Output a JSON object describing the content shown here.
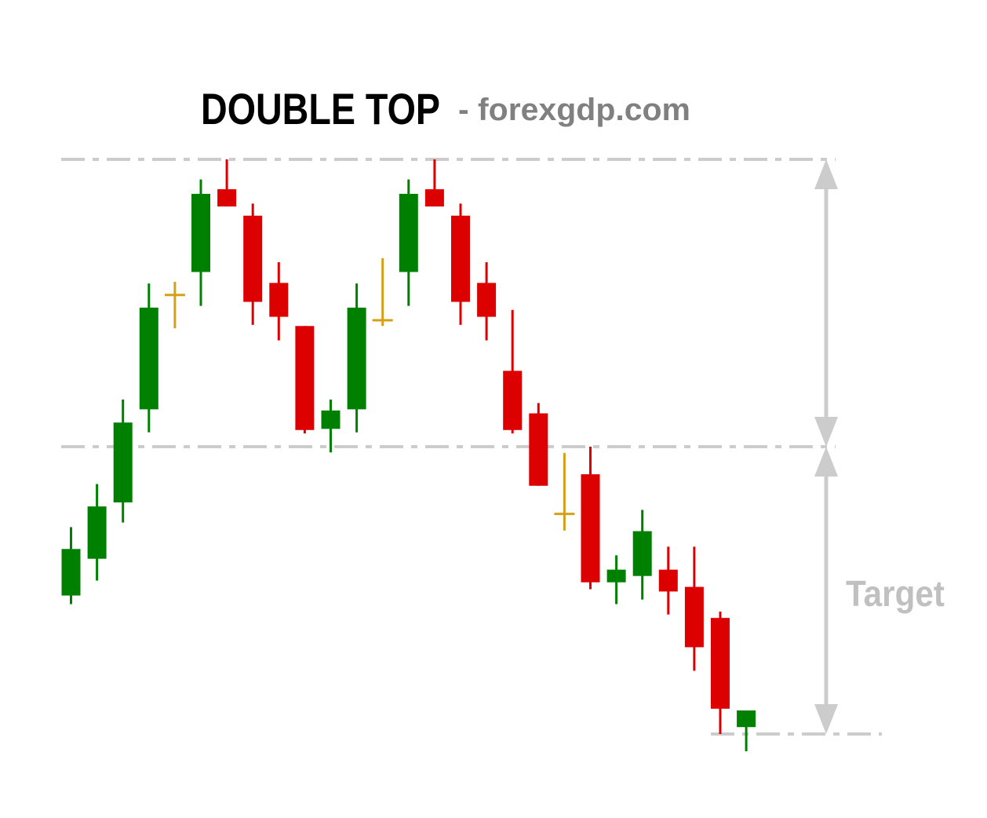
{
  "chart_data": {
    "type": "candlestick",
    "title": "DOUBLE TOP",
    "subtitle": "- forexgdp.com",
    "target_label": "Target",
    "colors": {
      "bull": "#008000",
      "bear": "#dd0000",
      "doji": "#d4a017",
      "guide": "#cccccc",
      "label": "#c0c0c0",
      "title": "#000000",
      "subtitle": "#808080"
    },
    "price_range": [
      0,
      100
    ],
    "levels": {
      "top": 100,
      "neckline": 50,
      "target": 0
    },
    "candles": [
      {
        "open": 32.2,
        "close": 24.1,
        "high": 36.0,
        "low": 22.6,
        "type": "bull"
      },
      {
        "open": 39.6,
        "close": 30.5,
        "high": 43.5,
        "low": 26.7,
        "type": "bull"
      },
      {
        "open": 54.2,
        "close": 40.3,
        "high": 58.2,
        "low": 36.8,
        "type": "bull"
      },
      {
        "open": 74.2,
        "close": 56.5,
        "high": 78.4,
        "low": 52.5,
        "type": "bull"
      },
      {
        "open": 76.4,
        "close": 76.4,
        "high": 78.7,
        "low": 70.6,
        "type": "doji"
      },
      {
        "open": 94.0,
        "close": 80.4,
        "high": 96.5,
        "low": 74.5,
        "type": "bull"
      },
      {
        "open": 94.8,
        "close": 91.8,
        "high": 100.0,
        "low": 91.8,
        "type": "bear"
      },
      {
        "open": 90.2,
        "close": 75.2,
        "high": 92.3,
        "low": 71.2,
        "type": "bear"
      },
      {
        "open": 78.5,
        "close": 72.6,
        "high": 82.1,
        "low": 68.5,
        "type": "bear"
      },
      {
        "open": 71.0,
        "close": 52.9,
        "high": 71.0,
        "low": 52.3,
        "type": "bear"
      },
      {
        "open": 56.3,
        "close": 53.1,
        "high": 58.2,
        "low": 49.0,
        "type": "bull"
      },
      {
        "open": 74.2,
        "close": 56.5,
        "high": 78.4,
        "low": 52.5,
        "type": "bull"
      },
      {
        "open": 72.0,
        "close": 72.0,
        "high": 82.8,
        "low": 71.0,
        "type": "doji"
      },
      {
        "open": 94.0,
        "close": 80.4,
        "high": 96.5,
        "low": 74.5,
        "type": "bull"
      },
      {
        "open": 94.8,
        "close": 91.8,
        "high": 100.0,
        "low": 91.8,
        "type": "bear"
      },
      {
        "open": 90.2,
        "close": 75.2,
        "high": 92.3,
        "low": 71.2,
        "type": "bear"
      },
      {
        "open": 78.5,
        "close": 72.6,
        "high": 82.1,
        "low": 68.5,
        "type": "bear"
      },
      {
        "open": 63.2,
        "close": 52.9,
        "high": 73.8,
        "low": 52.3,
        "type": "bear"
      },
      {
        "open": 55.8,
        "close": 43.2,
        "high": 57.6,
        "low": 43.2,
        "type": "bear"
      },
      {
        "open": 38.3,
        "close": 38.3,
        "high": 48.9,
        "low": 35.4,
        "type": "doji"
      },
      {
        "open": 45.2,
        "close": 26.4,
        "high": 50.0,
        "low": 25.2,
        "type": "bear"
      },
      {
        "open": 28.6,
        "close": 26.4,
        "high": 31.1,
        "low": 22.6,
        "type": "bull"
      },
      {
        "open": 35.3,
        "close": 27.5,
        "high": 39.0,
        "low": 23.4,
        "type": "bull"
      },
      {
        "open": 28.6,
        "close": 24.8,
        "high": 32.6,
        "low": 20.8,
        "type": "bear"
      },
      {
        "open": 25.6,
        "close": 15.1,
        "high": 32.6,
        "low": 11.0,
        "type": "bear"
      },
      {
        "open": 20.2,
        "close": 4.4,
        "high": 21.3,
        "low": 0.0,
        "type": "bear"
      },
      {
        "open": 4.1,
        "close": 1.2,
        "high": 4.1,
        "low": -3.0,
        "type": "bull"
      }
    ]
  }
}
